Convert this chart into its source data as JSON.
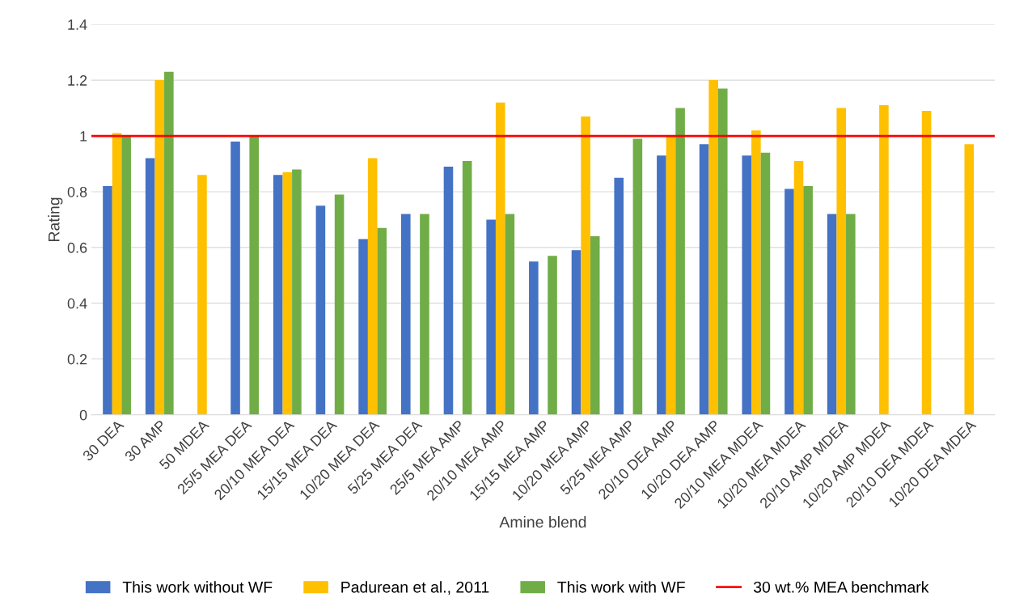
{
  "chart_data": {
    "type": "bar",
    "xlabel": "Amine blend",
    "ylabel": "Rating",
    "categories": [
      "30 DEA",
      "30 AMP",
      "50 MDEA",
      "25/5 MEA DEA",
      "20/10 MEA DEA",
      "15/15 MEA DEA",
      "10/20 MEA DEA",
      "5/25 MEA DEA",
      "25/5 MEA AMP",
      "20/10 MEA AMP",
      "15/15 MEA AMP",
      "10/20 MEA AMP",
      "5/25 MEA AMP",
      "20/10 DEA AMP",
      "10/20 DEA AMP",
      "20/10 MEA MDEA",
      "10/20 MEA MDEA",
      "20/10 AMP MDEA",
      "10/20 AMP MDEA",
      "20/10 DEA MDEA",
      "10/20 DEA MDEA"
    ],
    "series": [
      {
        "name": "This work without WF",
        "color": "#4472c4",
        "values": [
          0.82,
          0.92,
          null,
          0.98,
          0.86,
          0.75,
          0.63,
          0.72,
          0.89,
          0.7,
          0.55,
          0.59,
          0.85,
          0.93,
          0.97,
          0.93,
          0.81,
          0.72,
          null,
          null,
          null
        ]
      },
      {
        "name": "Padurean et al., 2011",
        "color": "#ffc000",
        "values": [
          1.01,
          1.2,
          0.86,
          null,
          0.87,
          null,
          0.92,
          null,
          null,
          1.12,
          null,
          1.07,
          null,
          1.0,
          1.2,
          1.02,
          0.91,
          1.1,
          1.11,
          1.09,
          0.97
        ]
      },
      {
        "name": "This work with WF",
        "color": "#70ad47",
        "values": [
          1.0,
          1.23,
          null,
          1.0,
          0.88,
          0.79,
          0.67,
          0.72,
          0.91,
          0.72,
          0.57,
          0.64,
          0.99,
          1.1,
          1.17,
          0.94,
          0.82,
          0.72,
          null,
          null,
          null
        ]
      }
    ],
    "ref_lines": [
      {
        "axis": "y",
        "value": 1,
        "label": "30 wt.% MEA benchmark",
        "color": "#ff0000",
        "line_style": "solid"
      }
    ],
    "ylim": [
      0,
      1.4
    ],
    "yticks": [
      0,
      0.2,
      0.4,
      0.6,
      0.8,
      1,
      1.2,
      1.4
    ],
    "grid": "y",
    "legend": "bottom"
  }
}
